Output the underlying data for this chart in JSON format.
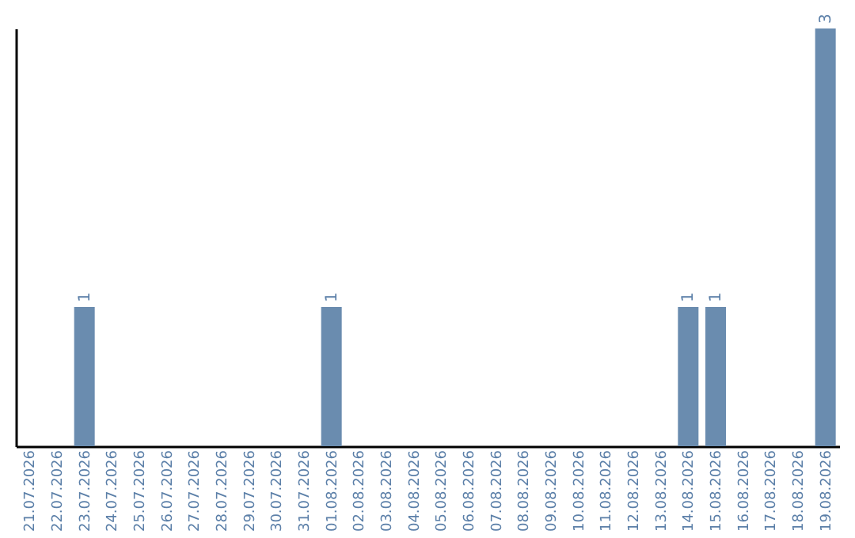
{
  "chart_data": {
    "type": "bar",
    "categories": [
      "21.07.2026",
      "22.07.2026",
      "23.07.2026",
      "24.07.2026",
      "25.07.2026",
      "26.07.2026",
      "27.07.2026",
      "28.07.2026",
      "29.07.2026",
      "30.07.2026",
      "31.07.2026",
      "01.08.2026",
      "02.08.2026",
      "03.08.2026",
      "04.08.2026",
      "05.08.2026",
      "06.08.2026",
      "07.08.2026",
      "08.08.2026",
      "09.08.2026",
      "10.08.2026",
      "11.08.2026",
      "12.08.2026",
      "13.08.2026",
      "14.08.2026",
      "15.08.2026",
      "16.08.2026",
      "17.08.2026",
      "18.08.2026",
      "19.08.2026"
    ],
    "values": [
      0,
      0,
      1,
      0,
      0,
      0,
      0,
      0,
      0,
      0,
      0,
      1,
      0,
      0,
      0,
      0,
      0,
      0,
      0,
      0,
      0,
      0,
      0,
      0,
      1,
      1,
      0,
      0,
      0,
      3
    ],
    "value_labels": [
      null,
      null,
      "1",
      null,
      null,
      null,
      null,
      null,
      null,
      null,
      null,
      "1",
      null,
      null,
      null,
      null,
      null,
      null,
      null,
      null,
      null,
      null,
      null,
      null,
      "1",
      "1",
      null,
      null,
      null,
      "3"
    ],
    "color": "#6a8caf",
    "tick_labels": "x",
    "grid": false
  }
}
